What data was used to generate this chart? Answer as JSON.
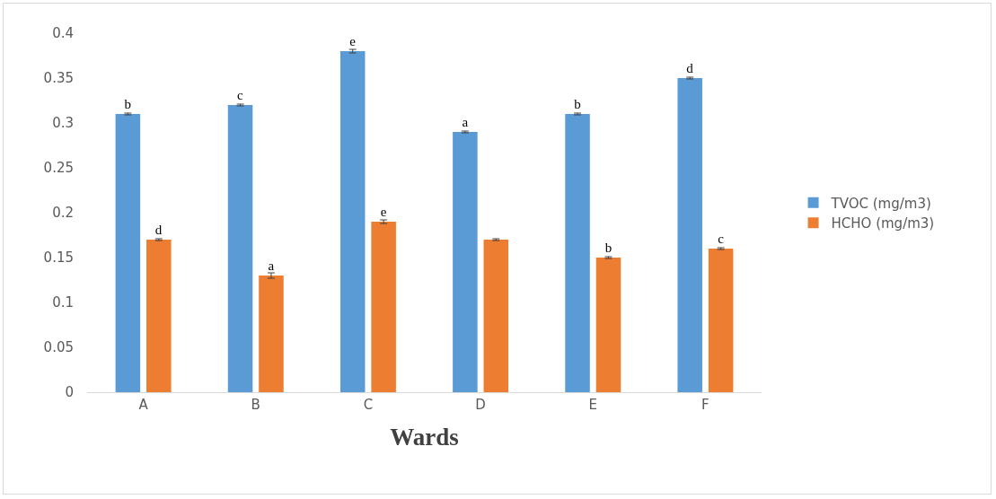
{
  "chart_data": {
    "type": "bar",
    "xlabel": "Wards",
    "categories": [
      "A",
      "B",
      "C",
      "D",
      "E",
      "F"
    ],
    "series": [
      {
        "name": "TVOC (mg/m3)",
        "color": "#5b9bd5",
        "values": [
          0.31,
          0.32,
          0.38,
          0.29,
          0.31,
          0.35
        ],
        "errors": [
          0.001,
          0.001,
          0.002,
          0.001,
          0.001,
          0.001
        ],
        "value_labels": [
          "b",
          "c",
          "e",
          "a",
          "b",
          "d"
        ]
      },
      {
        "name": "HCHO (mg/m3)",
        "color": "#ed7d31",
        "values": [
          0.17,
          0.13,
          0.19,
          0.17,
          0.15,
          0.16
        ],
        "errors": [
          0.001,
          0.003,
          0.002,
          0.001,
          0.001,
          0.001
        ],
        "value_labels": [
          "d",
          "a",
          "e",
          null,
          "b",
          "c"
        ]
      }
    ],
    "ylim": [
      0,
      0.4
    ],
    "yticks": [
      0,
      0.05,
      0.1,
      0.15,
      0.2,
      0.25,
      0.3,
      0.35,
      0.4
    ],
    "grid": false,
    "legend": "right"
  }
}
